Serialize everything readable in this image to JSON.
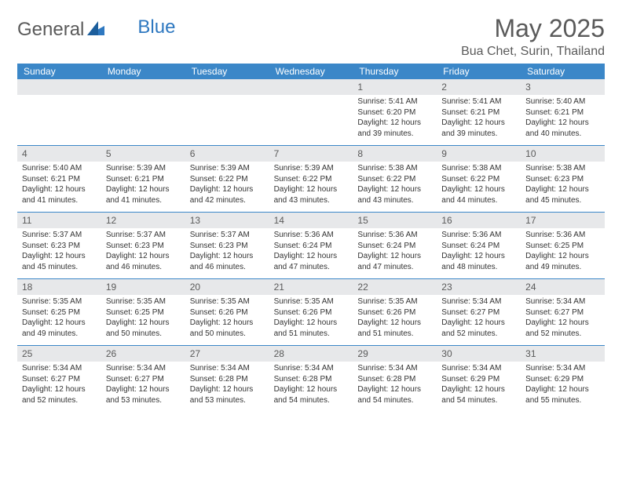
{
  "logo": {
    "text1": "General",
    "text2": "Blue"
  },
  "title": "May 2025",
  "location": "Bua Chet, Surin, Thailand",
  "colors": {
    "header_bg": "#3b87c8",
    "header_text": "#ffffff",
    "daynum_bg": "#e7e8ea",
    "text": "#333333",
    "title_text": "#5a5a5a",
    "rule": "#3b87c8"
  },
  "weekdays": [
    "Sunday",
    "Monday",
    "Tuesday",
    "Wednesday",
    "Thursday",
    "Friday",
    "Saturday"
  ],
  "weeks": [
    [
      {
        "n": "",
        "sr": "",
        "ss": "",
        "dl": ""
      },
      {
        "n": "",
        "sr": "",
        "ss": "",
        "dl": ""
      },
      {
        "n": "",
        "sr": "",
        "ss": "",
        "dl": ""
      },
      {
        "n": "",
        "sr": "",
        "ss": "",
        "dl": ""
      },
      {
        "n": "1",
        "sr": "Sunrise: 5:41 AM",
        "ss": "Sunset: 6:20 PM",
        "dl": "Daylight: 12 hours and 39 minutes."
      },
      {
        "n": "2",
        "sr": "Sunrise: 5:41 AM",
        "ss": "Sunset: 6:21 PM",
        "dl": "Daylight: 12 hours and 39 minutes."
      },
      {
        "n": "3",
        "sr": "Sunrise: 5:40 AM",
        "ss": "Sunset: 6:21 PM",
        "dl": "Daylight: 12 hours and 40 minutes."
      }
    ],
    [
      {
        "n": "4",
        "sr": "Sunrise: 5:40 AM",
        "ss": "Sunset: 6:21 PM",
        "dl": "Daylight: 12 hours and 41 minutes."
      },
      {
        "n": "5",
        "sr": "Sunrise: 5:39 AM",
        "ss": "Sunset: 6:21 PM",
        "dl": "Daylight: 12 hours and 41 minutes."
      },
      {
        "n": "6",
        "sr": "Sunrise: 5:39 AM",
        "ss": "Sunset: 6:22 PM",
        "dl": "Daylight: 12 hours and 42 minutes."
      },
      {
        "n": "7",
        "sr": "Sunrise: 5:39 AM",
        "ss": "Sunset: 6:22 PM",
        "dl": "Daylight: 12 hours and 43 minutes."
      },
      {
        "n": "8",
        "sr": "Sunrise: 5:38 AM",
        "ss": "Sunset: 6:22 PM",
        "dl": "Daylight: 12 hours and 43 minutes."
      },
      {
        "n": "9",
        "sr": "Sunrise: 5:38 AM",
        "ss": "Sunset: 6:22 PM",
        "dl": "Daylight: 12 hours and 44 minutes."
      },
      {
        "n": "10",
        "sr": "Sunrise: 5:38 AM",
        "ss": "Sunset: 6:23 PM",
        "dl": "Daylight: 12 hours and 45 minutes."
      }
    ],
    [
      {
        "n": "11",
        "sr": "Sunrise: 5:37 AM",
        "ss": "Sunset: 6:23 PM",
        "dl": "Daylight: 12 hours and 45 minutes."
      },
      {
        "n": "12",
        "sr": "Sunrise: 5:37 AM",
        "ss": "Sunset: 6:23 PM",
        "dl": "Daylight: 12 hours and 46 minutes."
      },
      {
        "n": "13",
        "sr": "Sunrise: 5:37 AM",
        "ss": "Sunset: 6:23 PM",
        "dl": "Daylight: 12 hours and 46 minutes."
      },
      {
        "n": "14",
        "sr": "Sunrise: 5:36 AM",
        "ss": "Sunset: 6:24 PM",
        "dl": "Daylight: 12 hours and 47 minutes."
      },
      {
        "n": "15",
        "sr": "Sunrise: 5:36 AM",
        "ss": "Sunset: 6:24 PM",
        "dl": "Daylight: 12 hours and 47 minutes."
      },
      {
        "n": "16",
        "sr": "Sunrise: 5:36 AM",
        "ss": "Sunset: 6:24 PM",
        "dl": "Daylight: 12 hours and 48 minutes."
      },
      {
        "n": "17",
        "sr": "Sunrise: 5:36 AM",
        "ss": "Sunset: 6:25 PM",
        "dl": "Daylight: 12 hours and 49 minutes."
      }
    ],
    [
      {
        "n": "18",
        "sr": "Sunrise: 5:35 AM",
        "ss": "Sunset: 6:25 PM",
        "dl": "Daylight: 12 hours and 49 minutes."
      },
      {
        "n": "19",
        "sr": "Sunrise: 5:35 AM",
        "ss": "Sunset: 6:25 PM",
        "dl": "Daylight: 12 hours and 50 minutes."
      },
      {
        "n": "20",
        "sr": "Sunrise: 5:35 AM",
        "ss": "Sunset: 6:26 PM",
        "dl": "Daylight: 12 hours and 50 minutes."
      },
      {
        "n": "21",
        "sr": "Sunrise: 5:35 AM",
        "ss": "Sunset: 6:26 PM",
        "dl": "Daylight: 12 hours and 51 minutes."
      },
      {
        "n": "22",
        "sr": "Sunrise: 5:35 AM",
        "ss": "Sunset: 6:26 PM",
        "dl": "Daylight: 12 hours and 51 minutes."
      },
      {
        "n": "23",
        "sr": "Sunrise: 5:34 AM",
        "ss": "Sunset: 6:27 PM",
        "dl": "Daylight: 12 hours and 52 minutes."
      },
      {
        "n": "24",
        "sr": "Sunrise: 5:34 AM",
        "ss": "Sunset: 6:27 PM",
        "dl": "Daylight: 12 hours and 52 minutes."
      }
    ],
    [
      {
        "n": "25",
        "sr": "Sunrise: 5:34 AM",
        "ss": "Sunset: 6:27 PM",
        "dl": "Daylight: 12 hours and 52 minutes."
      },
      {
        "n": "26",
        "sr": "Sunrise: 5:34 AM",
        "ss": "Sunset: 6:27 PM",
        "dl": "Daylight: 12 hours and 53 minutes."
      },
      {
        "n": "27",
        "sr": "Sunrise: 5:34 AM",
        "ss": "Sunset: 6:28 PM",
        "dl": "Daylight: 12 hours and 53 minutes."
      },
      {
        "n": "28",
        "sr": "Sunrise: 5:34 AM",
        "ss": "Sunset: 6:28 PM",
        "dl": "Daylight: 12 hours and 54 minutes."
      },
      {
        "n": "29",
        "sr": "Sunrise: 5:34 AM",
        "ss": "Sunset: 6:28 PM",
        "dl": "Daylight: 12 hours and 54 minutes."
      },
      {
        "n": "30",
        "sr": "Sunrise: 5:34 AM",
        "ss": "Sunset: 6:29 PM",
        "dl": "Daylight: 12 hours and 54 minutes."
      },
      {
        "n": "31",
        "sr": "Sunrise: 5:34 AM",
        "ss": "Sunset: 6:29 PM",
        "dl": "Daylight: 12 hours and 55 minutes."
      }
    ]
  ]
}
